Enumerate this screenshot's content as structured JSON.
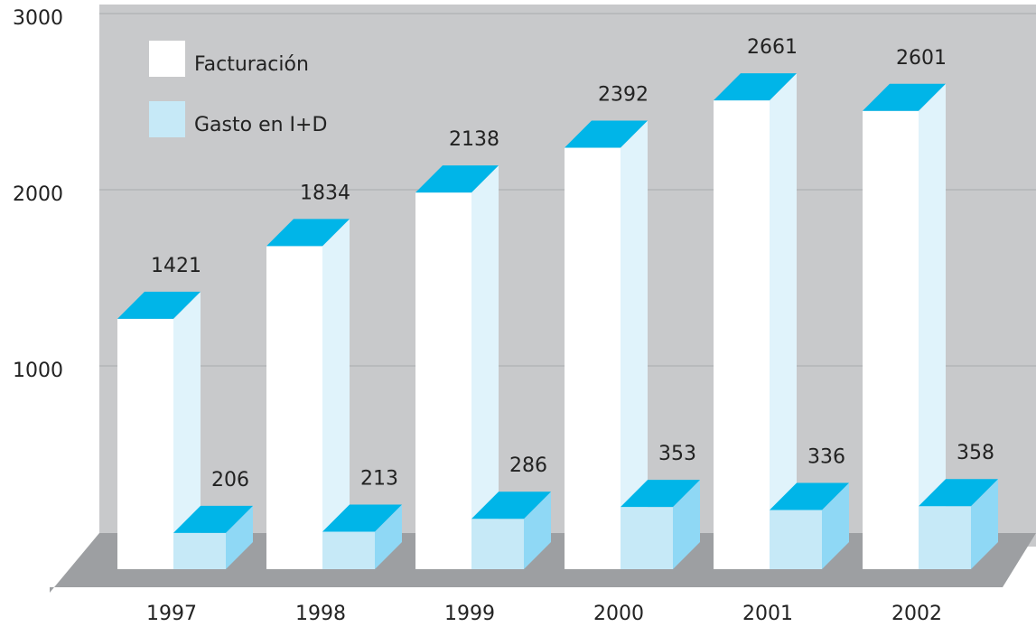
{
  "chart_data": {
    "type": "bar3d",
    "categories": [
      "1997",
      "1998",
      "1999",
      "2000",
      "2001",
      "2002"
    ],
    "series": [
      {
        "name": "Facturación",
        "color": "#ffffff",
        "side_color": "#e0f3fb",
        "top_color": "#00b5e8",
        "values": [
          1421,
          1834,
          2138,
          2392,
          2661,
          2601
        ]
      },
      {
        "name": "Gasto en I+D",
        "color": "#c6e9f7",
        "side_color": "#8fd8f5",
        "top_color": "#00b5e8",
        "values": [
          206,
          213,
          286,
          353,
          336,
          358
        ]
      }
    ],
    "ylim": [
      0,
      3000
    ],
    "yticks": [
      1000,
      2000,
      3000
    ],
    "grid": true
  }
}
